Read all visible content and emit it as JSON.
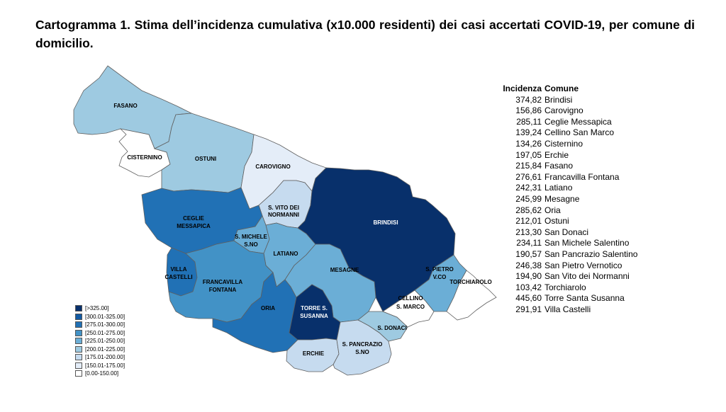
{
  "title": "Cartogramma 1. Stima dell’incidenza cumulativa (x10.000 residenti) dei casi accertati COVID-19, per comune di domicilio.",
  "colors": {
    "c1": "#ffffff",
    "c2": "#e4edf8",
    "c3": "#c6dbef",
    "c4": "#9ecae1",
    "c5": "#6baed6",
    "c6": "#4292c6",
    "c7": "#2171b5",
    "c8": "#125aa3",
    "c9": "#08306b",
    "border": "#5f5f5f"
  },
  "legend": [
    {
      "label": "[>325.00]",
      "color": "#08306b"
    },
    {
      "label": "[300.01-325.00]",
      "color": "#125aa3"
    },
    {
      "label": "[275.01-300.00]",
      "color": "#2171b5"
    },
    {
      "label": "[250.01-275.00]",
      "color": "#4292c6"
    },
    {
      "label": "[225.01-250.00]",
      "color": "#6baed6"
    },
    {
      "label": "[200.01-225.00]",
      "color": "#9ecae1"
    },
    {
      "label": "[175.01-200.00]",
      "color": "#c6dbef"
    },
    {
      "label": "[150.01-175.00]",
      "color": "#e4edf8"
    },
    {
      "label": "[0.00-150.00]",
      "color": "#ffffff"
    }
  ],
  "table": {
    "header": {
      "value": "Incidenza",
      "name": "Comune"
    },
    "rows": [
      {
        "value": "374,82",
        "name": "Brindisi"
      },
      {
        "value": "156,86",
        "name": "Carovigno"
      },
      {
        "value": "285,11",
        "name": "Ceglie Messapica"
      },
      {
        "value": "139,24",
        "name": "Cellino San Marco"
      },
      {
        "value": "134,26",
        "name": "Cisternino"
      },
      {
        "value": "197,05",
        "name": "Erchie"
      },
      {
        "value": "215,84",
        "name": "Fasano"
      },
      {
        "value": "276,61",
        "name": "Francavilla Fontana"
      },
      {
        "value": "242,31",
        "name": "Latiano"
      },
      {
        "value": "245,99",
        "name": "Mesagne"
      },
      {
        "value": "285,62",
        "name": "Oria"
      },
      {
        "value": "212,01",
        "name": "Ostuni"
      },
      {
        "value": "213,30",
        "name": "San Donaci"
      },
      {
        "value": "234,11",
        "name": "San Michele Salentino"
      },
      {
        "value": "190,57",
        "name": "San Pancrazio Salentino"
      },
      {
        "value": "246,38",
        "name": "San Pietro Vernotico"
      },
      {
        "value": "194,90",
        "name": "San Vito dei Normanni"
      },
      {
        "value": "103,42",
        "name": "Torchiarolo"
      },
      {
        "value": "445,60",
        "name": "Torre Santa Susanna"
      },
      {
        "value": "291,91",
        "name": "Villa Castelli"
      }
    ]
  },
  "map_labels": {
    "fasano": "FASANO",
    "cisternino": "CISTERNINO",
    "ostuni": "OSTUNI",
    "carovigno": "CAROVIGNO",
    "svito_1": "S. VITO DEI",
    "svito_2": "NORMANNI",
    "ceglie_1": "CEGLIE",
    "ceglie_2": "MESSAPICA",
    "smichele_1": "S. MICHELE",
    "smichele_2": "S.NO",
    "latiano": "LATIANO",
    "brindisi": "BRINDISI",
    "villa_1": "VILLA",
    "villa_2": "CASTELLI",
    "francavilla_1": "FRANCAVILLA",
    "francavilla_2": "FONTANA",
    "mesagne": "MESAGNE",
    "spietro_1": "S. PIETRO",
    "spietro_2": "V.CO",
    "torchiarolo": "TORCHIAROLO",
    "cellino_1": "CELLINO",
    "cellino_2": "S. MARCO",
    "torre_1": "TORRE S.",
    "torre_2": "SUSANNA",
    "oria": "ORIA",
    "sdonaci": "S. DONACI",
    "spancrazio_1": "S. PANCRAZIO",
    "spancrazio_2": "S.NO",
    "erchie": "ERCHIE"
  }
}
